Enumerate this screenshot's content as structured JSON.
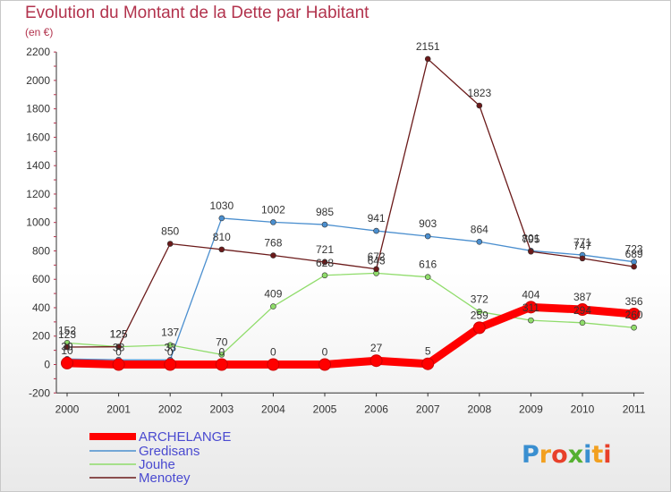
{
  "chart_data": {
    "type": "line",
    "title": "Evolution du Montant de la Dette par Habitant",
    "subtitle": "(en €)",
    "x": [
      "2000",
      "2001",
      "2002",
      "2003",
      "2004",
      "2005",
      "2006",
      "2007",
      "2008",
      "2009",
      "2010",
      "2011"
    ],
    "ylim": [
      -200,
      2200
    ],
    "yticks": [
      -200,
      0,
      200,
      400,
      600,
      800,
      1000,
      1200,
      1400,
      1600,
      1800,
      2000,
      2200
    ],
    "grid": false,
    "legend_position": "bottom-left",
    "series": [
      {
        "name": "ARCHELANGE",
        "color": "#ff0000",
        "emphasis": true,
        "values": [
          10,
          0,
          0,
          0,
          0,
          0,
          27,
          5,
          259,
          404,
          387,
          356
        ]
      },
      {
        "name": "Gredisans",
        "color": "#4b8fcf",
        "values": [
          39,
          33,
          33,
          1030,
          1002,
          985,
          941,
          903,
          864,
          801,
          771,
          723
        ]
      },
      {
        "name": "Jouhe",
        "color": "#8fdc6a",
        "values": [
          152,
          125,
          137,
          70,
          409,
          628,
          643,
          616,
          372,
          311,
          294,
          260
        ]
      },
      {
        "name": "Menotey",
        "color": "#6b1a1a",
        "values": [
          123,
          125,
          850,
          810,
          768,
          721,
          672,
          2151,
          1823,
          795,
          747,
          689
        ]
      }
    ],
    "data_labels": [
      {
        "series": 0,
        "labels": [
          "10",
          "0",
          "0",
          "0",
          "0",
          "0",
          "27",
          "5",
          "259",
          "404",
          "387",
          "356"
        ]
      },
      {
        "series": 1,
        "labels": [
          "39",
          "33",
          "33",
          "1030",
          "1002",
          "985",
          "941",
          "903",
          "864",
          "801",
          "771",
          "723"
        ]
      },
      {
        "series": 2,
        "labels": [
          "152",
          "125",
          "137",
          "70",
          "409",
          "628",
          "643",
          "616",
          "372",
          "311",
          "294",
          "260"
        ]
      },
      {
        "series": 3,
        "labels": [
          "123",
          "125",
          "850",
          "810",
          "768",
          "721",
          "672",
          "2151",
          "1823",
          "795",
          "747",
          "689"
        ]
      }
    ]
  },
  "watermark": "Proxiti"
}
